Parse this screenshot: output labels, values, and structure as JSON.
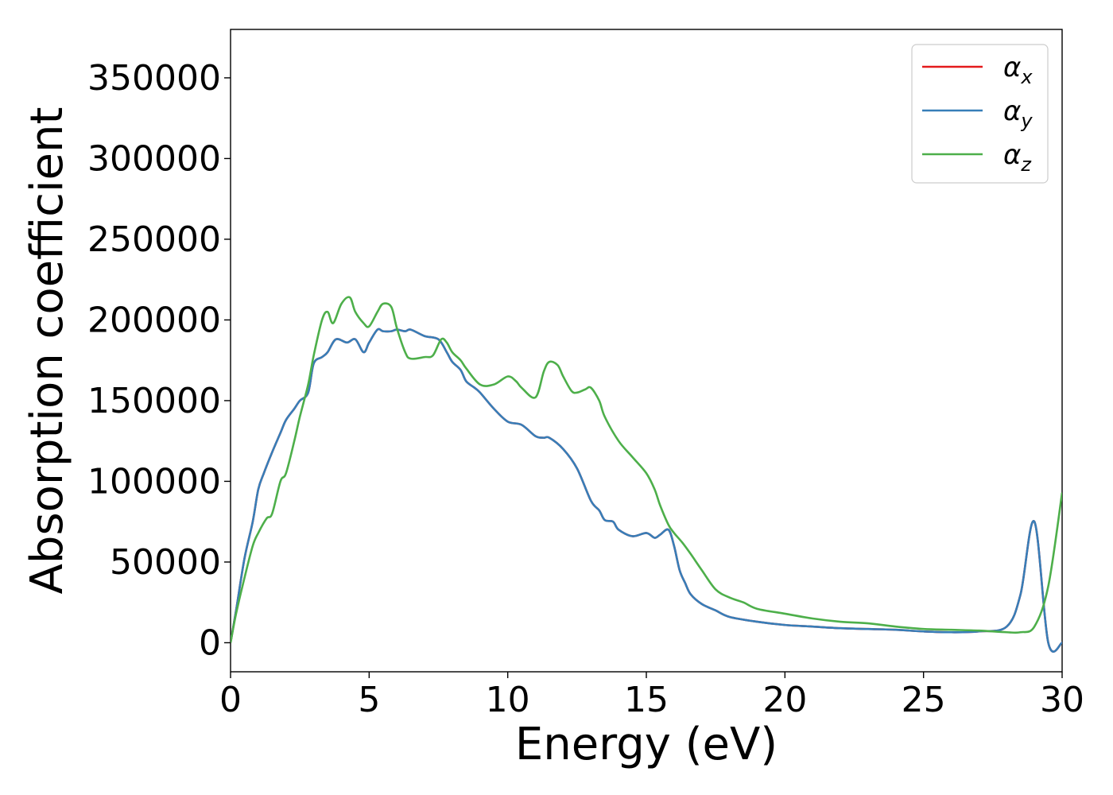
{
  "chart_data": {
    "type": "line",
    "title": "",
    "xlabel": "Energy (eV)",
    "ylabel": "Absorption coefficient",
    "xlim": [
      0,
      30
    ],
    "ylim": [
      -18000,
      380000
    ],
    "xticks": [
      0,
      5,
      10,
      15,
      20,
      25,
      30
    ],
    "xtick_labels": [
      "0",
      "5",
      "10",
      "15",
      "20",
      "25",
      "30"
    ],
    "yticks": [
      0,
      50000,
      100000,
      150000,
      200000,
      250000,
      300000,
      350000
    ],
    "ytick_labels": [
      "0",
      "50000",
      "100000",
      "150000",
      "200000",
      "250000",
      "300000",
      "350000"
    ],
    "grid": false,
    "legend_placement": "top-right",
    "series": [
      {
        "name": "α_x",
        "symbol": "α",
        "subscript": "x",
        "color": "#e41a1c",
        "x": [
          0,
          0.2,
          0.5,
          0.8,
          1.0,
          1.2,
          1.5,
          1.8,
          2.0,
          2.3,
          2.5,
          2.8,
          3.0,
          3.3,
          3.5,
          3.8,
          4.2,
          4.5,
          4.8,
          5.0,
          5.3,
          5.5,
          5.8,
          6.0,
          6.3,
          6.5,
          7.0,
          7.5,
          7.8,
          8.0,
          8.3,
          8.5,
          8.8,
          9.0,
          9.5,
          10.0,
          10.5,
          11.0,
          11.3,
          11.5,
          12.0,
          12.5,
          13.0,
          13.3,
          13.5,
          13.8,
          14.0,
          14.5,
          15.0,
          15.3,
          15.5,
          15.8,
          16.0,
          16.2,
          16.4,
          16.6,
          17.0,
          17.5,
          18.0,
          19.0,
          20.0,
          21.0,
          22.0,
          23.0,
          24.0,
          25.0,
          26.0,
          27.0,
          28.0,
          28.5,
          29.0,
          29.5,
          30.0
        ],
        "y": [
          0,
          20000,
          52000,
          75000,
          95000,
          105000,
          118000,
          130000,
          138000,
          145000,
          150000,
          155000,
          173000,
          177000,
          180000,
          188000,
          186000,
          188000,
          180000,
          186000,
          194000,
          193000,
          193000,
          194000,
          193000,
          194000,
          190000,
          188000,
          180000,
          174000,
          169000,
          162000,
          158000,
          155000,
          145000,
          137000,
          135000,
          128000,
          127000,
          127000,
          120000,
          108000,
          88000,
          82000,
          76000,
          75000,
          70000,
          66000,
          68000,
          65000,
          67000,
          70000,
          60000,
          45000,
          37000,
          30000,
          24000,
          20000,
          16000,
          13000,
          11000,
          10000,
          9000,
          8500,
          8000,
          7000,
          6500,
          7000,
          10000,
          30000,
          75000,
          0,
          0
        ]
      },
      {
        "name": "α_y",
        "symbol": "α",
        "subscript": "y",
        "color": "#377eb8",
        "x": [
          0,
          0.2,
          0.5,
          0.8,
          1.0,
          1.2,
          1.5,
          1.8,
          2.0,
          2.3,
          2.5,
          2.8,
          3.0,
          3.3,
          3.5,
          3.8,
          4.2,
          4.5,
          4.8,
          5.0,
          5.3,
          5.5,
          5.8,
          6.0,
          6.3,
          6.5,
          7.0,
          7.5,
          7.8,
          8.0,
          8.3,
          8.5,
          8.8,
          9.0,
          9.5,
          10.0,
          10.5,
          11.0,
          11.3,
          11.5,
          12.0,
          12.5,
          13.0,
          13.3,
          13.5,
          13.8,
          14.0,
          14.5,
          15.0,
          15.3,
          15.5,
          15.8,
          16.0,
          16.2,
          16.4,
          16.6,
          17.0,
          17.5,
          18.0,
          19.0,
          20.0,
          21.0,
          22.0,
          23.0,
          24.0,
          25.0,
          26.0,
          27.0,
          28.0,
          28.5,
          29.0,
          29.5,
          30.0
        ],
        "y": [
          0,
          20000,
          52000,
          75000,
          95000,
          105000,
          118000,
          130000,
          138000,
          145000,
          150000,
          155000,
          173000,
          177000,
          180000,
          188000,
          186000,
          188000,
          180000,
          186000,
          194000,
          193000,
          193000,
          194000,
          193000,
          194000,
          190000,
          188000,
          180000,
          174000,
          169000,
          162000,
          158000,
          155000,
          145000,
          137000,
          135000,
          128000,
          127000,
          127000,
          120000,
          108000,
          88000,
          82000,
          76000,
          75000,
          70000,
          66000,
          68000,
          65000,
          67000,
          70000,
          60000,
          45000,
          37000,
          30000,
          24000,
          20000,
          16000,
          13000,
          11000,
          10000,
          9000,
          8500,
          8000,
          7000,
          6500,
          7000,
          10000,
          30000,
          75000,
          0,
          0
        ]
      },
      {
        "name": "α_z",
        "symbol": "α",
        "subscript": "z",
        "color": "#4daf4a",
        "x": [
          0,
          0.2,
          0.5,
          0.8,
          1.0,
          1.3,
          1.5,
          1.8,
          2.0,
          2.3,
          2.5,
          2.8,
          3.0,
          3.3,
          3.5,
          3.7,
          4.0,
          4.3,
          4.5,
          4.8,
          5.0,
          5.3,
          5.5,
          5.8,
          6.0,
          6.3,
          6.5,
          7.0,
          7.3,
          7.6,
          7.8,
          8.0,
          8.3,
          8.5,
          9.0,
          9.5,
          10.0,
          10.3,
          10.5,
          11.0,
          11.3,
          11.5,
          11.8,
          12.0,
          12.3,
          12.5,
          12.8,
          13.0,
          13.3,
          13.5,
          14.0,
          14.5,
          15.0,
          15.3,
          15.5,
          15.8,
          16.0,
          16.3,
          16.6,
          17.0,
          17.5,
          18.0,
          18.5,
          19.0,
          20.0,
          21.0,
          22.0,
          23.0,
          24.0,
          25.0,
          26.0,
          27.0,
          28.0,
          28.5,
          29.0,
          29.5,
          30.0
        ],
        "y": [
          0,
          18000,
          40000,
          60000,
          68000,
          77000,
          80000,
          100000,
          105000,
          125000,
          140000,
          160000,
          178000,
          200000,
          205000,
          198000,
          210000,
          214000,
          205000,
          198000,
          196000,
          205000,
          210000,
          208000,
          195000,
          180000,
          176000,
          177000,
          178000,
          188000,
          186000,
          180000,
          175000,
          170000,
          160000,
          160000,
          165000,
          162000,
          158000,
          152000,
          168000,
          174000,
          172000,
          165000,
          156000,
          155000,
          157000,
          158000,
          150000,
          140000,
          125000,
          115000,
          105000,
          95000,
          85000,
          73000,
          68000,
          62000,
          55000,
          45000,
          33000,
          28000,
          25000,
          21000,
          18000,
          15000,
          13000,
          12000,
          10000,
          8500,
          8000,
          7500,
          6500,
          6500,
          10000,
          35000,
          93000
        ]
      }
    ]
  }
}
